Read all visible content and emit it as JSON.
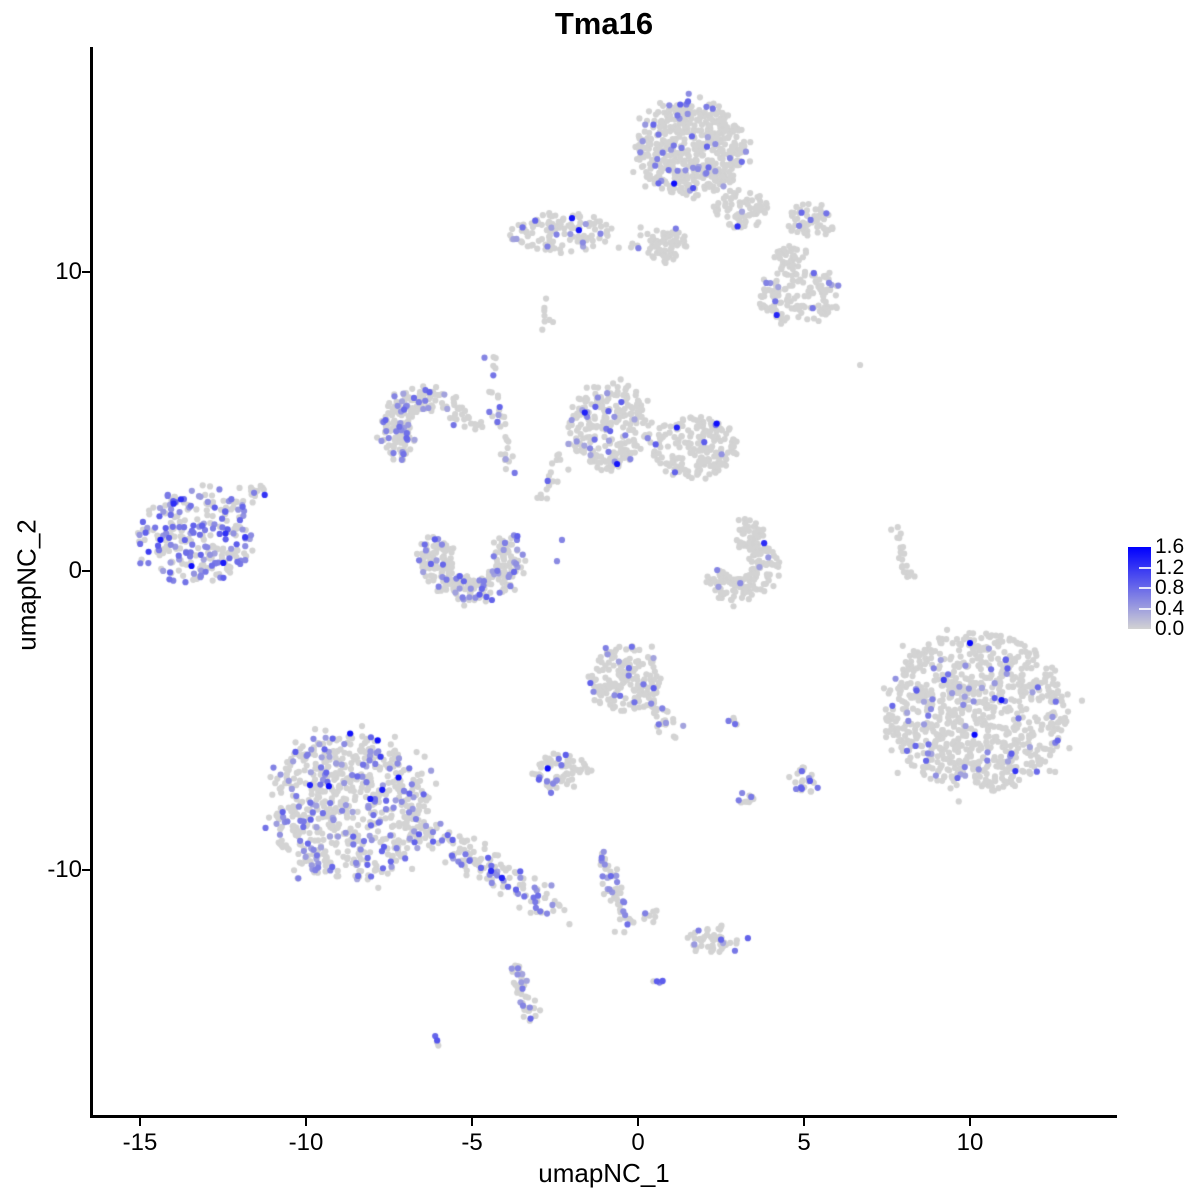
{
  "title": "Tma16",
  "axes": {
    "x": {
      "label": "umapNC_1",
      "ticks": [
        -15,
        -10,
        -5,
        0,
        5,
        10
      ]
    },
    "y": {
      "label": "umapNC_2",
      "ticks": [
        10,
        0,
        -10
      ]
    }
  },
  "legend": {
    "tick_values": [
      1.6,
      1.2,
      0.8,
      0.4,
      0.0
    ],
    "inner_ticks": [
      1.2,
      0.8,
      0.4
    ]
  },
  "colors": {
    "background": "#FFFFFF",
    "axis": "#000000",
    "text": "#000000",
    "scale_low": "#D3D3D3",
    "scale_high": "#0000FF"
  },
  "chart_data": {
    "type": "scatter",
    "title": "Tma16",
    "xlabel": "umapNC_1",
    "ylabel": "umapNC_2",
    "x_domain": [
      -16.4,
      14.4
    ],
    "y_domain": [
      -18.3,
      17.5
    ],
    "value_range": [
      0.0,
      1.6
    ],
    "grid": false,
    "legend_position": "right",
    "point_radius_px": 3.1,
    "seed": 20240416,
    "clusters": [
      {
        "name": "top-main",
        "shape": "blob",
        "cx": 1.6,
        "cy": 14.1,
        "rx": 1.65,
        "ry": 1.55,
        "n": 520,
        "expr_frac": 0.1
      },
      {
        "name": "top-neck",
        "shape": "blob",
        "cx": 3.1,
        "cy": 12.1,
        "rx": 0.8,
        "ry": 0.65,
        "n": 70,
        "expr_frac": 0.05
      },
      {
        "name": "top-clump-right",
        "shape": "blob",
        "cx": 5.2,
        "cy": 11.7,
        "rx": 0.75,
        "ry": 0.55,
        "n": 60,
        "expr_frac": 0.05
      },
      {
        "name": "top-clump-small",
        "shape": "blob",
        "cx": 4.6,
        "cy": 10.5,
        "rx": 0.45,
        "ry": 0.4,
        "n": 30,
        "expr_frac": 0.03
      },
      {
        "name": "upper-right",
        "shape": "blob",
        "cx": 4.85,
        "cy": 9.2,
        "rx": 1.25,
        "ry": 0.9,
        "n": 140,
        "expr_frac": 0.09
      },
      {
        "name": "upper-left-band",
        "shape": "blob",
        "cx": -2.35,
        "cy": 11.3,
        "rx": 1.55,
        "ry": 0.65,
        "n": 120,
        "expr_frac": 0.1
      },
      {
        "name": "upper-connector",
        "shape": "line",
        "x1": -0.5,
        "y1": 11.1,
        "x2": 0.9,
        "y2": 10.8,
        "w": 0.18,
        "n": 18,
        "expr_frac": 0.04
      },
      {
        "name": "upper-clump",
        "shape": "blob",
        "cx": 0.9,
        "cy": 10.9,
        "rx": 0.6,
        "ry": 0.55,
        "n": 60,
        "expr_frac": 0.03
      },
      {
        "name": "tiny-column",
        "shape": "line",
        "x1": -2.8,
        "y1": 9.1,
        "x2": -2.65,
        "y2": 8.0,
        "w": 0.12,
        "n": 8,
        "expr_frac": 0.0
      },
      {
        "name": "hook-left",
        "shape": "arc",
        "cx": -6.55,
        "cy": 4.8,
        "rx": 1.3,
        "ry": 1.35,
        "a0": 60,
        "a1": 245,
        "band": 0.35,
        "n": 190,
        "expr_frac": 0.17
      },
      {
        "name": "hook-tail",
        "shape": "line",
        "x1": -5.8,
        "y1": 5.45,
        "x2": -4.7,
        "y2": 5.05,
        "w": 0.2,
        "n": 30,
        "expr_frac": 0.12
      },
      {
        "name": "filament",
        "shape": "line",
        "x1": -4.55,
        "y1": 7.3,
        "x2": -3.85,
        "y2": 3.3,
        "w": 0.13,
        "n": 32,
        "expr_frac": 0.12
      },
      {
        "name": "mid-left-lobe",
        "shape": "blob",
        "cx": -0.9,
        "cy": 4.85,
        "rx": 1.2,
        "ry": 1.5,
        "n": 250,
        "expr_frac": 0.11
      },
      {
        "name": "mid-right-lobe",
        "shape": "blob",
        "cx": 1.7,
        "cy": 4.15,
        "rx": 1.3,
        "ry": 1.0,
        "n": 190,
        "expr_frac": 0.04
      },
      {
        "name": "mid-tail",
        "shape": "line",
        "x1": -2.35,
        "y1": 3.8,
        "x2": -2.95,
        "y2": 2.2,
        "w": 0.15,
        "n": 18,
        "expr_frac": 0.15
      },
      {
        "name": "far-left",
        "shape": "blob",
        "cx": -13.3,
        "cy": 1.15,
        "rx": 1.7,
        "ry": 1.55,
        "n": 270,
        "expr_frac": 0.45
      },
      {
        "name": "far-left-tail",
        "shape": "line",
        "x1": -12.05,
        "y1": 2.2,
        "x2": -11.2,
        "y2": 2.9,
        "w": 0.14,
        "n": 22,
        "expr_frac": 0.35
      },
      {
        "name": "crescent",
        "shape": "arc",
        "cx": -5.0,
        "cy": 0.45,
        "rx": 1.6,
        "ry": 1.5,
        "a0": 150,
        "a1": 395,
        "band": 0.45,
        "n": 270,
        "expr_frac": 0.15
      },
      {
        "name": "c-cluster",
        "shape": "arc",
        "cx": 3.0,
        "cy": 0.35,
        "rx": 1.15,
        "ry": 1.4,
        "a0": -160,
        "a1": 80,
        "band": 0.4,
        "n": 190,
        "expr_frac": 0.03
      },
      {
        "name": "right-strand",
        "shape": "line",
        "x1": 7.85,
        "y1": 1.45,
        "x2": 8.1,
        "y2": -0.2,
        "w": 0.1,
        "n": 22,
        "expr_frac": 0.0
      },
      {
        "name": "right-large",
        "shape": "blob",
        "cx": 10.2,
        "cy": -4.7,
        "rx": 2.75,
        "ry": 2.65,
        "n": 880,
        "expr_frac": 0.05
      },
      {
        "name": "center-small",
        "shape": "blob",
        "cx": -0.4,
        "cy": -3.6,
        "rx": 1.05,
        "ry": 1.1,
        "n": 170,
        "expr_frac": 0.1
      },
      {
        "name": "center-small-tail",
        "shape": "line",
        "x1": 0.3,
        "y1": -4.3,
        "x2": 1.15,
        "y2": -5.5,
        "w": 0.18,
        "n": 28,
        "expr_frac": 0.1
      },
      {
        "name": "small-horizontal",
        "shape": "blob",
        "cx": -2.3,
        "cy": -6.7,
        "rx": 0.9,
        "ry": 0.55,
        "n": 70,
        "expr_frac": 0.13
      },
      {
        "name": "dot-pair",
        "shape": "blob",
        "cx": 2.85,
        "cy": -5.05,
        "rx": 0.24,
        "ry": 0.2,
        "n": 6,
        "expr_frac": 0.3
      },
      {
        "name": "tiny-south",
        "shape": "blob",
        "cx": 3.25,
        "cy": -7.55,
        "rx": 0.3,
        "ry": 0.3,
        "n": 12,
        "expr_frac": 0.12
      },
      {
        "name": "small-right",
        "shape": "blob",
        "cx": 5.05,
        "cy": -7.0,
        "rx": 0.42,
        "ry": 0.45,
        "n": 26,
        "expr_frac": 0.2
      },
      {
        "name": "bottom-left",
        "shape": "blob",
        "cx": -8.7,
        "cy": -7.9,
        "rx": 2.4,
        "ry": 2.45,
        "n": 680,
        "expr_frac": 0.21
      },
      {
        "name": "bottom-left-tail",
        "shape": "line",
        "x1": -6.6,
        "y1": -8.6,
        "x2": -2.5,
        "y2": -11.2,
        "w": 0.28,
        "n": 150,
        "expr_frac": 0.27
      },
      {
        "name": "bottom-strand",
        "shape": "line",
        "x1": -1.1,
        "y1": -9.4,
        "x2": -0.25,
        "y2": -12.0,
        "w": 0.15,
        "n": 55,
        "expr_frac": 0.18
      },
      {
        "name": "bottom-hook",
        "shape": "line",
        "x1": -0.1,
        "y1": -11.5,
        "x2": 0.7,
        "y2": -11.4,
        "w": 0.1,
        "n": 8,
        "expr_frac": 0.1
      },
      {
        "name": "bottom-small",
        "shape": "blob",
        "cx": 2.25,
        "cy": -12.35,
        "rx": 0.8,
        "ry": 0.45,
        "n": 48,
        "expr_frac": 0.06
      },
      {
        "name": "bottom-snake",
        "shape": "line",
        "x1": -3.65,
        "y1": -13.1,
        "x2": -3.3,
        "y2": -15.0,
        "w": 0.13,
        "n": 42,
        "expr_frac": 0.25
      },
      {
        "name": "bottom-dot",
        "shape": "blob",
        "cx": 0.6,
        "cy": -13.75,
        "rx": 0.18,
        "ry": 0.15,
        "n": 4,
        "expr_frac": 0.25
      },
      {
        "name": "bottom-tiny",
        "shape": "blob",
        "cx": -6.05,
        "cy": -15.75,
        "rx": 0.15,
        "ry": 0.12,
        "n": 4,
        "expr_frac": 0.3
      }
    ],
    "extra_points": [
      {
        "x": -1.78,
        "y": 11.4,
        "v": 1.45
      },
      {
        "x": 1.66,
        "y": 12.81,
        "v": 1.0
      },
      {
        "x": 10.0,
        "y": -2.41,
        "v": 1.55
      },
      {
        "x": -9.88,
        "y": -7.16,
        "v": 1.35
      },
      {
        "x": -6.05,
        "y": -15.7,
        "v": 0.95
      },
      {
        "x": -2.62,
        "y": -7.42,
        "v": 0.7
      },
      {
        "x": 6.69,
        "y": 6.89,
        "v": 0.0
      },
      {
        "x": 3.31,
        "y": -12.28,
        "v": 0.85
      },
      {
        "x": 2.92,
        "y": -12.7,
        "v": 0.7
      },
      {
        "x": -2.29,
        "y": 1.04,
        "v": 0.6
      },
      {
        "x": -2.44,
        "y": 0.33,
        "v": 0.55
      },
      {
        "x": 5.18,
        "y": -7.02,
        "v": 0.9
      },
      {
        "x": 0.57,
        "y": -13.72,
        "v": 0.9
      },
      {
        "x": -4.4,
        "y": -0.97,
        "v": 0.85
      }
    ]
  }
}
